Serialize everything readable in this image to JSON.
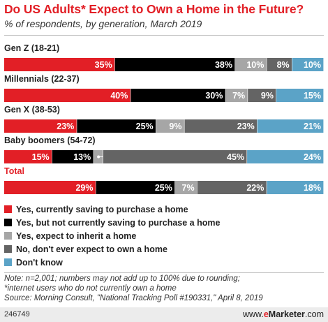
{
  "header": {
    "title": "Do US Adults* Expect to Own a Home in the Future?",
    "subtitle": "% of respondents, by generation, March 2019"
  },
  "colors": {
    "title": "#e21f26",
    "saving": "#e21f26",
    "not_saving": "#000000",
    "inherit": "#a6a6a6",
    "never": "#646464",
    "dont_know": "#5ba3c7"
  },
  "chart_data": {
    "type": "bar",
    "orientation": "horizontal",
    "stacked": true,
    "categories": [
      "Gen Z (18-21)",
      "Millennials (22-37)",
      "Gen X (38-53)",
      "Baby boomers (54-72)",
      "Total"
    ],
    "series": [
      {
        "name": "Yes, currently saving to purchase a home",
        "color": "#e21f26",
        "values": [
          35,
          40,
          23,
          15,
          29
        ]
      },
      {
        "name": "Yes, but not currently saving to purchase a home",
        "color": "#000000",
        "values": [
          38,
          30,
          25,
          13,
          25
        ]
      },
      {
        "name": "Yes, expect to inherit a home",
        "color": "#a6a6a6",
        "values": [
          10,
          7,
          9,
          3,
          7
        ]
      },
      {
        "name": "No, don't ever expect to own a home",
        "color": "#646464",
        "values": [
          8,
          9,
          23,
          45,
          22
        ]
      },
      {
        "name": "Don't know",
        "color": "#5ba3c7",
        "values": [
          10,
          15,
          21,
          24,
          18
        ]
      }
    ],
    "legend_position": "bottom",
    "grid": false
  },
  "notes": [
    "Note: n=2,001; numbers may not add up to 100% due to rounding;",
    "*internet users who do not currently own a home",
    "Source: Morning Consult, \"National Tracking Poll #190331,\" April 8, 2019"
  ],
  "footer": {
    "id": "246749",
    "brand_prefix": "www.",
    "brand_e": "e",
    "brand_rest": "Marketer",
    "brand_suffix": ".com"
  }
}
